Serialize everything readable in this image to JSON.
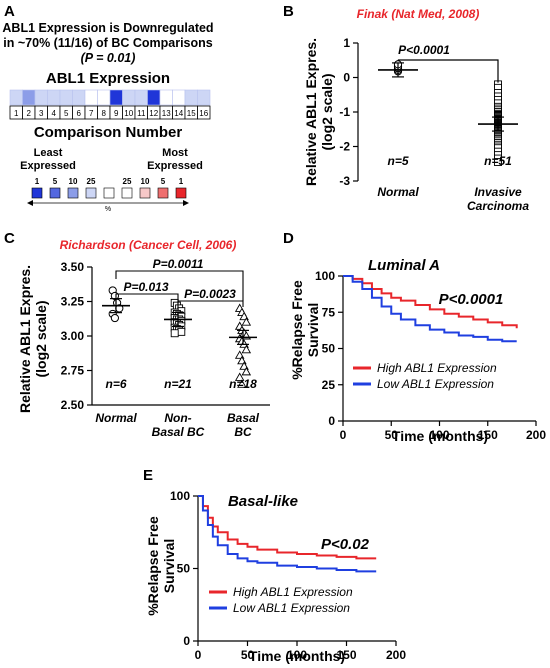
{
  "colors": {
    "red": "#e8262b",
    "blue": "#1f3fe0",
    "black": "#000000"
  },
  "panels": {
    "A": {
      "letter": "A",
      "heading": [
        "ABL1 Expression is Downregulated",
        "in ~70% (11/16) of BC Comparisons",
        "(P = 0.01)"
      ],
      "title": "ABL1 Expression",
      "xlabel": "Comparison Number",
      "legend_least": [
        "Least",
        "Expressed"
      ],
      "legend_most": [
        "Most",
        "Expressed"
      ],
      "legend_ticks": [
        "1",
        "5",
        "10",
        "25",
        "",
        "25",
        "10",
        "5",
        "1"
      ],
      "legend_percent": "%",
      "cells": [
        {
          "number": "1",
          "color": "#cdd6f5"
        },
        {
          "number": "2",
          "color": "#8c9de8"
        },
        {
          "number": "3",
          "color": "#cdd6f5"
        },
        {
          "number": "4",
          "color": "#cdd6f5"
        },
        {
          "number": "5",
          "color": "#cdd6f5"
        },
        {
          "number": "6",
          "color": "#cdd6f5"
        },
        {
          "number": "7",
          "color": "#ffffff"
        },
        {
          "number": "8",
          "color": "#ffffff"
        },
        {
          "number": "9",
          "color": "#2036d8"
        },
        {
          "number": "10",
          "color": "#cdd6f5"
        },
        {
          "number": "11",
          "color": "#cdd6f5"
        },
        {
          "number": "12",
          "color": "#2036d8"
        },
        {
          "number": "13",
          "color": "#ffffff"
        },
        {
          "number": "14",
          "color": "#ffffff"
        },
        {
          "number": "15",
          "color": "#cdd6f5"
        },
        {
          "number": "16",
          "color": "#cdd6f5"
        }
      ],
      "legend_colors": [
        "#2036d8",
        "#5468e0",
        "#8c9de8",
        "#cdd6f5",
        "#ffffff",
        "#ffffff",
        "#f7c8c8",
        "#ee6f6f",
        "#e8262b"
      ]
    },
    "B": {
      "letter": "B",
      "source": "Finak (Nat Med, 2008)",
      "ylabel": [
        "Relative ABL1 Expres.",
        "(log2 scale)"
      ],
      "pvalue": "P<0.0001",
      "chart_data": {
        "type": "scatter",
        "categories": [
          "Normal",
          "Invasive Carcinoma"
        ],
        "category_lines": [
          [
            "Normal"
          ],
          [
            "Invasive",
            "Carcinoma"
          ]
        ],
        "n_labels": [
          "n=5",
          "n=51"
        ],
        "ylim": [
          -3,
          1
        ],
        "yticks": [
          -3,
          -2,
          -1,
          0,
          1
        ],
        "means": [
          0.22,
          -1.35
        ],
        "points": [
          [
            0.18,
            0.22,
            0.27,
            0.32,
            0.38
          ],
          [
            -0.2,
            -0.3,
            -0.45,
            -0.55,
            -0.65,
            -0.75,
            -0.85,
            -0.9,
            -0.95,
            -1.0,
            -1.05,
            -1.08,
            -1.1,
            -1.12,
            -1.15,
            -1.18,
            -1.2,
            -1.22,
            -1.25,
            -1.27,
            -1.3,
            -1.32,
            -1.33,
            -1.35,
            -1.36,
            -1.38,
            -1.4,
            -1.42,
            -1.44,
            -1.46,
            -1.48,
            -1.5,
            -1.52,
            -1.55,
            -1.57,
            -1.6,
            -1.63,
            -1.66,
            -1.7,
            -1.73,
            -1.77,
            -1.8,
            -1.85,
            -1.9,
            -1.95,
            -2.0,
            -2.05,
            -2.15,
            -2.25,
            -2.35,
            -2.45
          ]
        ]
      }
    },
    "C": {
      "letter": "C",
      "source": "Richardson (Cancer Cell, 2006)",
      "ylabel": [
        "Relative ABL1 Expres.",
        "(log2 scale)"
      ],
      "pvalues": [
        "P=0.0011",
        "P=0.013",
        "P=0.0023"
      ],
      "chart_data": {
        "type": "scatter",
        "categories": [
          "Normal",
          "Non-Basal BC",
          "Basal BC"
        ],
        "category_lines": [
          [
            "Normal"
          ],
          [
            "Non-",
            "Basal BC"
          ],
          [
            "Basal",
            "BC"
          ]
        ],
        "n_labels": [
          "n=6",
          "n=21",
          "n=18"
        ],
        "ylim": [
          2.5,
          3.5
        ],
        "yticks": [
          2.5,
          2.75,
          3.0,
          3.25,
          3.5
        ],
        "means": [
          3.22,
          3.12,
          2.99
        ],
        "points": [
          [
            3.33,
            3.29,
            3.24,
            3.2,
            3.16,
            3.13
          ],
          [
            3.24,
            3.22,
            3.2,
            3.18,
            3.17,
            3.16,
            3.15,
            3.14,
            3.13,
            3.12,
            3.12,
            3.11,
            3.1,
            3.09,
            3.08,
            3.07,
            3.06,
            3.05,
            3.04,
            3.03,
            3.02
          ],
          [
            3.2,
            3.17,
            3.14,
            3.1,
            3.07,
            3.04,
            3.02,
            3.0,
            2.98,
            2.96,
            2.94,
            2.9,
            2.86,
            2.82,
            2.78,
            2.74,
            2.7,
            2.65
          ]
        ]
      }
    },
    "D": {
      "letter": "D",
      "subtitle": "Luminal A",
      "pvalue": "P<0.0001",
      "ylabel": [
        "%Relapse Free",
        "Survival"
      ],
      "xlabel": "Time (months)",
      "legend": [
        "High ABL1 Expression",
        "Low ABL1 Expression"
      ],
      "chart_data": {
        "type": "line",
        "xlim": [
          0,
          200
        ],
        "ylim": [
          0,
          100
        ],
        "xticks": [
          0,
          50,
          100,
          150,
          200
        ],
        "yticks": [
          0,
          25,
          50,
          75,
          100
        ],
        "series": [
          {
            "name": "High ABL1 Expression",
            "color": "#e8262b",
            "x": [
              0,
              10,
              20,
              30,
              40,
              50,
              60,
              75,
              90,
              105,
              120,
              135,
              150,
              165,
              180
            ],
            "y": [
              100,
              98,
              95,
              91,
              88,
              85,
              83,
              80,
              77,
              74,
              72,
              70,
              68,
              66,
              64
            ]
          },
          {
            "name": "Low ABL1 Expression",
            "color": "#1f3fe0",
            "x": [
              0,
              10,
              20,
              30,
              40,
              50,
              60,
              75,
              90,
              105,
              120,
              135,
              150,
              165,
              180
            ],
            "y": [
              100,
              96,
              91,
              85,
              79,
              74,
              70,
              66,
              63,
              61,
              59,
              58,
              56,
              55,
              55
            ]
          }
        ]
      }
    },
    "E": {
      "letter": "E",
      "subtitle": "Basal-like",
      "pvalue": "P<0.02",
      "ylabel": [
        "%Relapse Free",
        "Survival"
      ],
      "xlabel": "Time (months)",
      "legend": [
        "High ABL1 Expression",
        "Low ABL1 Expression"
      ],
      "chart_data": {
        "type": "line",
        "xlim": [
          0,
          200
        ],
        "ylim": [
          0,
          100
        ],
        "xticks": [
          0,
          50,
          100,
          150,
          200
        ],
        "yticks": [
          0,
          50,
          100
        ],
        "series": [
          {
            "name": "High ABL1 Expression",
            "color": "#e8262b",
            "x": [
              0,
              5,
              10,
              15,
              20,
              30,
              40,
              50,
              60,
              80,
              100,
              120,
              140,
              160,
              180
            ],
            "y": [
              100,
              93,
              85,
              79,
              75,
              70,
              67,
              65,
              63,
              61,
              60,
              59,
              58,
              57,
              57
            ]
          },
          {
            "name": "Low ABL1 Expression",
            "color": "#1f3fe0",
            "x": [
              0,
              5,
              10,
              15,
              20,
              30,
              40,
              50,
              60,
              80,
              100,
              120,
              140,
              160,
              180
            ],
            "y": [
              100,
              90,
              80,
              72,
              66,
              60,
              57,
              55,
              54,
              52,
              51,
              50,
              49,
              48,
              48
            ]
          }
        ]
      }
    }
  }
}
